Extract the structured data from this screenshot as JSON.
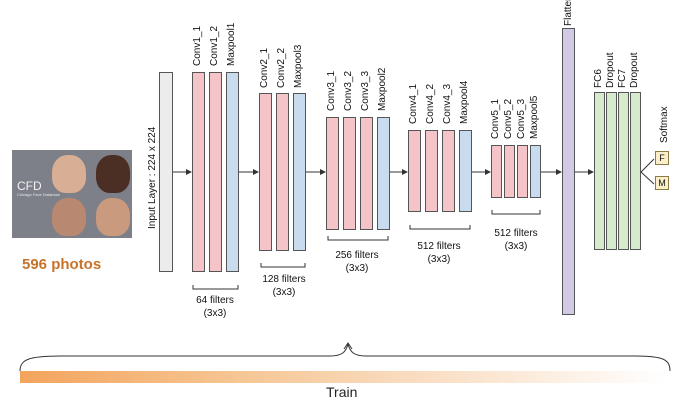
{
  "photo": {
    "title": "CFD",
    "subtitle": "Chicago Face Database",
    "count_label": "596 photos"
  },
  "input": {
    "label": "Input Layer : 224 x 224"
  },
  "blocks": [
    {
      "layers": [
        "Conv1_1",
        "Conv1_2",
        "Maxpool1"
      ],
      "filters": "64 filters",
      "kernel": "(3x3)"
    },
    {
      "layers": [
        "Conv2_1",
        "Conv2_2",
        "Maxpool3"
      ],
      "filters": "128 filters",
      "kernel": "(3x3)"
    },
    {
      "layers": [
        "Conv3_1",
        "Conv3_2",
        "Conv3_3",
        "Maxpool2"
      ],
      "filters": "256 filters",
      "kernel": "(3x3)"
    },
    {
      "layers": [
        "Conv4_1",
        "Conv4_2",
        "Conv4_3",
        "Maxpool4"
      ],
      "filters": "512 filters",
      "kernel": "(3x3)"
    },
    {
      "layers": [
        "Conv5_1",
        "Conv5_2",
        "Conv5_3",
        "Maxpool5"
      ],
      "filters": "512 filters",
      "kernel": "(3x3)"
    }
  ],
  "flatten": {
    "label": "Flatten"
  },
  "dense": [
    "FC6",
    "Dropout",
    "FC7",
    "Dropout"
  ],
  "softmax": {
    "label": "Softmax",
    "outputs": [
      "F",
      "M"
    ]
  },
  "train": {
    "label": "Train"
  },
  "colors": {
    "conv": "#f4c4c8",
    "pool": "#c9dcef",
    "dense": "#d5ebcc",
    "flatten": "#d2c9e4",
    "input": "#ececec",
    "photo_label": "#c8732a"
  }
}
